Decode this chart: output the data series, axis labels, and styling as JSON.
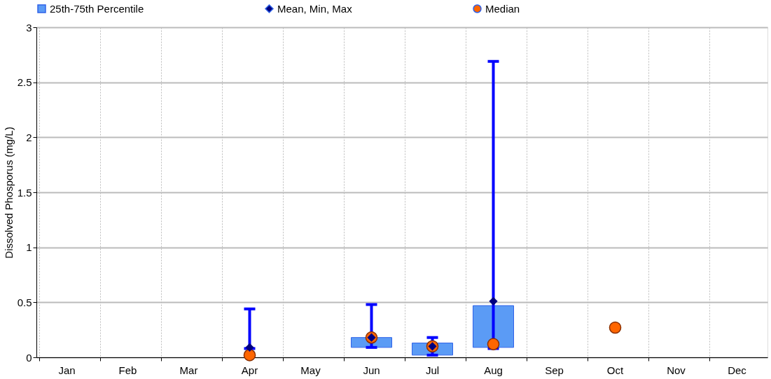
{
  "chart_data": {
    "type": "bar",
    "ylabel": "Dissolved Phosporus (mg/L)",
    "categories": [
      "Jan",
      "Feb",
      "Mar",
      "Apr",
      "May",
      "Jun",
      "Jul",
      "Aug",
      "Sep",
      "Oct",
      "Nov",
      "Dec"
    ],
    "series": [
      {
        "name": "25th-75th Percentile",
        "color": "#5b9bf5",
        "base": [
          null,
          null,
          null,
          null,
          null,
          0.09,
          0.02,
          0.09,
          null,
          null,
          null,
          null
        ],
        "values": [
          null,
          null,
          null,
          null,
          null,
          0.09,
          0.11,
          0.38,
          null,
          null,
          null,
          null
        ]
      },
      {
        "name": "Mean, Min, Max",
        "type": "scatter",
        "marker": "diamond",
        "color": "#00007f",
        "values": [
          null,
          null,
          null,
          0.09,
          null,
          0.18,
          0.1,
          0.51,
          null,
          null,
          null,
          null
        ],
        "errors": [
          null,
          null,
          null,
          [
            0.08,
            0.44
          ],
          null,
          [
            0.09,
            0.48
          ],
          [
            0.02,
            0.18
          ],
          [
            0.08,
            2.69
          ],
          null,
          null,
          null,
          null
        ]
      },
      {
        "name": "Median",
        "type": "scatter",
        "marker": "circle",
        "color": "#ff6600",
        "values": [
          null,
          null,
          null,
          0.02,
          null,
          0.18,
          0.1,
          0.12,
          null,
          0.27,
          null,
          null
        ]
      }
    ],
    "ylim": [
      0,
      3
    ],
    "yticks": [
      0,
      0.5,
      1,
      1.5,
      2,
      2.5,
      3
    ],
    "grid": true,
    "legend": "top"
  }
}
